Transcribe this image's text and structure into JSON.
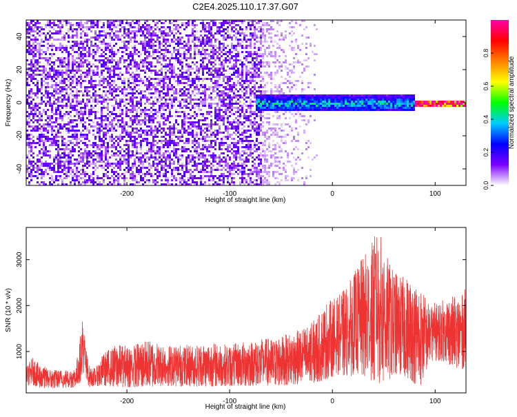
{
  "title": "C2E4.2025.110.17.37.G07",
  "chart_data": [
    {
      "type": "heatmap",
      "xlabel": "Height of straight line (km)",
      "ylabel": "Frequency (Hz)",
      "xlim": [
        -298,
        130
      ],
      "ylim": [
        -50,
        50
      ],
      "x_ticks": [
        -200,
        -100,
        0,
        100
      ],
      "y_ticks": [
        -40,
        -20,
        0,
        20,
        40
      ],
      "colorbar": {
        "label": "Normalized spectral amplitude",
        "range": [
          0.0,
          1.0
        ],
        "ticks": [
          0.0,
          0.2,
          0.4,
          0.6,
          0.8
        ],
        "colormap": [
          "#ffffff",
          "#7b00ff",
          "#0000ff",
          "#00ccff",
          "#00ff00",
          "#ffff00",
          "#ff8000",
          "#ff0000",
          "#ff00aa"
        ]
      },
      "regions": [
        {
          "x_range": [
            -298,
            -70
          ],
          "freq_range": [
            -50,
            50
          ],
          "amplitude": 0.12,
          "pattern": "broadband noise"
        },
        {
          "x_range": [
            -70,
            -15
          ],
          "freq_range": [
            -50,
            50
          ],
          "amplitude": 0.05,
          "pattern": "sparse noise"
        },
        {
          "x_range": [
            -75,
            80
          ],
          "freq_range": [
            -5,
            5
          ],
          "amplitude": 0.35,
          "pattern": "narrowband signal"
        },
        {
          "x_range": [
            80,
            130
          ],
          "freq_range": [
            -2,
            2
          ],
          "amplitude": 0.9,
          "pattern": "narrowband signal"
        }
      ]
    },
    {
      "type": "line",
      "xlabel": "Height of straight line (km)",
      "ylabel": "SNR (10 * v/v)",
      "xlim": [
        -298,
        130
      ],
      "ylim": [
        100,
        3700
      ],
      "x_ticks": [
        -200,
        -100,
        0,
        100
      ],
      "y_ticks": [
        1000,
        2000,
        3000
      ],
      "color": "#ee3333",
      "envelope": {
        "x": [
          -298,
          -292,
          -285,
          -275,
          -262,
          -250,
          -246,
          -243,
          -240,
          -236,
          -230,
          -222,
          -210,
          -195,
          -180,
          -160,
          -140,
          -120,
          -100,
          -80,
          -60,
          -40,
          -25,
          -15,
          -5,
          5,
          15,
          25,
          35,
          45,
          55,
          65,
          75,
          85,
          95,
          105,
          115,
          125,
          130
        ],
        "upper": [
          650,
          880,
          720,
          620,
          600,
          650,
          1200,
          1850,
          1100,
          650,
          650,
          1000,
          1150,
          1150,
          1250,
          1150,
          1150,
          1200,
          1150,
          1250,
          1300,
          1400,
          1550,
          1750,
          2100,
          2200,
          2450,
          2900,
          3250,
          3700,
          2950,
          2650,
          2600,
          2400,
          2050,
          2100,
          2200,
          2200,
          2400
        ],
        "lower": [
          250,
          280,
          200,
          200,
          200,
          220,
          300,
          500,
          300,
          220,
          250,
          250,
          230,
          220,
          230,
          240,
          240,
          240,
          250,
          250,
          260,
          270,
          300,
          320,
          400,
          500,
          450,
          500,
          400,
          300,
          350,
          500,
          400,
          200,
          800,
          800,
          700,
          600,
          650
        ]
      }
    }
  ]
}
